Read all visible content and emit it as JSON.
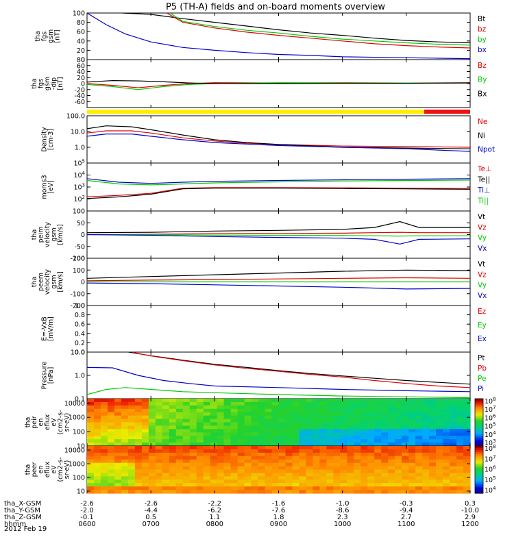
{
  "title": "P5 (TH-A) fields and on-board moments overview",
  "date": "2012 Feb 19",
  "ephemeris": {
    "labels": [
      "tha_X-GSM",
      "tha_Y-GSM",
      "tha_Z-GSM",
      "hhmm"
    ],
    "rows": [
      [
        "-2.6",
        "-2.6",
        "-2.2",
        "-1.6",
        "-1.0",
        "-0.3",
        "0.3"
      ],
      [
        "-2.0",
        "-4.4",
        "-6.2",
        "-7.6",
        "-8.6",
        "-9.4",
        "-10.0"
      ],
      [
        "-0.1",
        "0.5",
        "1.1",
        "1.8",
        "2.3",
        "2.7",
        "2.9"
      ],
      [
        "0600",
        "0700",
        "0800",
        "0900",
        "1000",
        "1100",
        "1200"
      ]
    ]
  },
  "chart_data": [
    {
      "type": "line",
      "id": "fgs_gsm",
      "ylabel": [
        "tha",
        "fgs",
        "gsm",
        "[nT]"
      ],
      "ylim": [
        0,
        100
      ],
      "log": false,
      "yticks": [
        0,
        20,
        40,
        60,
        80,
        100
      ],
      "yticklabels": [
        "0",
        "20",
        "40",
        "60",
        "80",
        "100"
      ],
      "xlim": [
        6,
        12
      ],
      "series": [
        {
          "name": "Bt",
          "color": "#000000",
          "x": [
            6.55,
            7.0,
            7.5,
            8.0,
            8.5,
            9.0,
            9.5,
            10.0,
            10.5,
            11.0,
            11.5,
            12.0
          ],
          "y": [
            100,
            97,
            88,
            80,
            72,
            64,
            57,
            52,
            46,
            41,
            38,
            36
          ]
        },
        {
          "name": "bz",
          "color": "#dd0000",
          "x": [
            7.25,
            7.5,
            8.0,
            8.5,
            9.0,
            9.5,
            10.0,
            10.5,
            11.0,
            11.5,
            12.0
          ],
          "y": [
            100,
            80,
            68,
            59,
            52,
            46,
            40,
            34,
            30,
            27,
            25
          ]
        },
        {
          "name": "by",
          "color": "#00cc00",
          "x": [
            7.3,
            7.5,
            8.0,
            8.5,
            9.0,
            9.5,
            10.0,
            10.5,
            11.0,
            11.5,
            12.0
          ],
          "y": [
            100,
            82,
            71,
            63,
            57,
            50,
            44,
            40,
            36,
            33,
            31
          ]
        },
        {
          "name": "bx",
          "color": "#0000cc",
          "x": [
            6.0,
            6.3,
            6.6,
            7.0,
            7.5,
            8.0,
            8.5,
            9.0,
            9.5,
            10.0,
            10.5,
            11.0,
            11.5,
            12.0
          ],
          "y": [
            100,
            75,
            55,
            38,
            26,
            20,
            15,
            11,
            9,
            6,
            5,
            4,
            3,
            2
          ]
        }
      ]
    },
    {
      "type": "line",
      "id": "fgs_dip",
      "ylabel": [
        "tha",
        "fgs",
        "gsm",
        "-dip",
        "[nT]"
      ],
      "ylim": [
        -80,
        80
      ],
      "log": false,
      "yticks": [
        -60,
        -40,
        -20,
        0,
        20,
        40,
        60,
        80
      ],
      "yticklabels": [
        "-60",
        "-40",
        "-20",
        "0",
        "20",
        "40",
        "60",
        "80"
      ],
      "xlim": [
        6,
        12
      ],
      "series": [
        {
          "name": "Bz",
          "color": "#dd0000",
          "x": [
            6.0,
            6.4,
            6.8,
            7.2,
            7.6,
            8.0,
            9.0,
            10.0,
            11.0,
            12.0
          ],
          "y": [
            0,
            -6,
            -14,
            -6,
            0,
            3,
            2,
            3,
            2,
            3
          ]
        },
        {
          "name": "By",
          "color": "#00cc00",
          "x": [
            6.0,
            6.4,
            6.8,
            7.2,
            7.6,
            8.0,
            9.0,
            10.0,
            11.0,
            12.0
          ],
          "y": [
            -3,
            -10,
            -20,
            -10,
            -3,
            0,
            3,
            2,
            2,
            2
          ]
        },
        {
          "name": "Bx",
          "color": "#000000",
          "x": [
            6.0,
            6.4,
            6.8,
            7.2,
            7.6,
            8.0,
            9.0,
            10.0,
            11.0,
            12.0
          ],
          "y": [
            5,
            10,
            9,
            6,
            2,
            0,
            0,
            1,
            1,
            2
          ]
        }
      ]
    },
    {
      "type": "density",
      "id": "density",
      "ylabel": [
        "Density",
        "[cm-3]"
      ],
      "ylim": [
        0.1,
        100
      ],
      "log": true,
      "yticks": [
        1,
        10,
        100
      ],
      "yticklabels": [
        "1.0",
        "10.0",
        "100.0"
      ],
      "xlim": [
        6,
        12
      ],
      "series": [
        {
          "name": "Ne",
          "color": "#dd0000",
          "x": [
            6.0,
            6.3,
            6.7,
            7.0,
            7.5,
            8.0,
            8.5,
            9.0,
            10.0,
            11.0,
            12.0
          ],
          "y": [
            8,
            11,
            11,
            8,
            4,
            2.5,
            1.8,
            1.5,
            1.2,
            1.1,
            1.0
          ]
        },
        {
          "name": "Ni",
          "color": "#000000",
          "x": [
            6.0,
            6.3,
            6.7,
            7.0,
            7.5,
            8.0,
            8.5,
            9.0,
            10.0,
            11.0,
            12.0
          ],
          "y": [
            15,
            23,
            20,
            13,
            6,
            3,
            2,
            1.5,
            1.0,
            0.9,
            0.8
          ]
        },
        {
          "name": "Npot",
          "color": "#0000cc",
          "x": [
            6.0,
            6.3,
            6.7,
            7.0,
            7.5,
            8.0,
            8.5,
            9.0,
            10.0,
            11.0,
            12.0
          ],
          "y": [
            5,
            7,
            7,
            5,
            3,
            2,
            1.6,
            1.3,
            1.0,
            0.8,
            0.55
          ]
        }
      ]
    },
    {
      "type": "line",
      "id": "temperature",
      "ylabel": [
        "moms3",
        "[eV]"
      ],
      "ylim": [
        10,
        100000
      ],
      "log": true,
      "yticks": [
        100,
        1000,
        10000,
        100000
      ],
      "yticklabels": [
        "10^2",
        "10^3",
        "10^4",
        "10^5"
      ],
      "xlim": [
        6,
        12
      ],
      "series": [
        {
          "name": "Te⊥",
          "color": "#dd0000",
          "x": [
            6.0,
            6.5,
            7.0,
            7.5,
            8.0,
            9.0,
            10.0,
            11.0,
            12.0
          ],
          "y": [
            150,
            200,
            300,
            800,
            900,
            900,
            850,
            800,
            750
          ]
        },
        {
          "name": "Te||",
          "color": "#000000",
          "x": [
            6.0,
            6.5,
            7.0,
            7.5,
            8.0,
            9.0,
            10.0,
            11.0,
            12.0
          ],
          "y": [
            110,
            150,
            250,
            700,
            800,
            800,
            750,
            700,
            650
          ]
        },
        {
          "name": "Ti⊥",
          "color": "#0000cc",
          "x": [
            6.0,
            6.5,
            7.0,
            7.5,
            8.0,
            9.0,
            10.0,
            11.0,
            12.0
          ],
          "y": [
            5000,
            2500,
            2000,
            2500,
            3000,
            3500,
            4000,
            4500,
            5000
          ]
        },
        {
          "name": "Ti||",
          "color": "#00cc00",
          "x": [
            6.0,
            6.5,
            7.0,
            7.5,
            8.0,
            9.0,
            10.0,
            11.0,
            12.0
          ],
          "y": [
            3500,
            1800,
            1500,
            1800,
            2200,
            2700,
            3200,
            3500,
            3800
          ]
        }
      ]
    },
    {
      "type": "line",
      "id": "peim_velocity",
      "ylabel": [
        "tha",
        "peim",
        "velocity",
        "gsm",
        "[km/s]"
      ],
      "ylim": [
        -100,
        100
      ],
      "log": false,
      "yticks": [
        -100,
        -50,
        0,
        50,
        100
      ],
      "yticklabels": [
        "-100",
        "-50",
        "0",
        "50",
        "100"
      ],
      "xlim": [
        6,
        12
      ],
      "series": [
        {
          "name": "Vt",
          "color": "#000000",
          "x": [
            6.0,
            7.0,
            8.0,
            9.0,
            10.0,
            10.5,
            10.9,
            11.2,
            12.0
          ],
          "y": [
            8,
            10,
            15,
            18,
            22,
            30,
            55,
            30,
            30
          ]
        },
        {
          "name": "Vz",
          "color": "#dd0000",
          "x": [
            6.0,
            7.0,
            8.0,
            9.0,
            10.0,
            10.5,
            10.9,
            11.2,
            12.0
          ],
          "y": [
            0,
            2,
            4,
            5,
            6,
            8,
            10,
            8,
            8
          ]
        },
        {
          "name": "Vy",
          "color": "#00cc00",
          "x": [
            6.0,
            7.0,
            8.0,
            9.0,
            10.0,
            10.5,
            10.9,
            11.2,
            12.0
          ],
          "y": [
            0,
            0,
            -2,
            -3,
            -4,
            -5,
            -6,
            -5,
            -5
          ]
        },
        {
          "name": "Vx",
          "color": "#0000cc",
          "x": [
            6.0,
            7.0,
            8.0,
            9.0,
            10.0,
            10.5,
            10.9,
            11.2,
            12.0
          ],
          "y": [
            0,
            -3,
            -8,
            -12,
            -15,
            -20,
            -40,
            -20,
            -18
          ]
        }
      ]
    },
    {
      "type": "line",
      "id": "peem_velocity",
      "ylabel": [
        "tha",
        "peem",
        "velocity",
        "gsm",
        "[km/s]"
      ],
      "ylim": [
        -200,
        200
      ],
      "log": false,
      "yticks": [
        -200,
        -100,
        0,
        100,
        200
      ],
      "yticklabels": [
        "-200",
        "-100",
        "0",
        "100",
        "200"
      ],
      "xlim": [
        6,
        12
      ],
      "series": [
        {
          "name": "Vt",
          "color": "#000000",
          "x": [
            6.0,
            7.0,
            8.0,
            9.0,
            10.0,
            11.0,
            12.0
          ],
          "y": [
            30,
            45,
            60,
            75,
            90,
            100,
            95
          ]
        },
        {
          "name": "Vz",
          "color": "#dd0000",
          "x": [
            6.0,
            7.0,
            8.0,
            9.0,
            10.0,
            11.0,
            12.0
          ],
          "y": [
            10,
            15,
            20,
            25,
            30,
            35,
            30
          ]
        },
        {
          "name": "Vy",
          "color": "#00cc00",
          "x": [
            6.0,
            7.0,
            8.0,
            9.0,
            10.0,
            11.0,
            12.0
          ],
          "y": [
            0,
            0,
            0,
            0,
            0,
            0,
            0
          ]
        },
        {
          "name": "Vx",
          "color": "#0000cc",
          "x": [
            6.0,
            7.0,
            8.0,
            9.0,
            10.0,
            11.0,
            12.0
          ],
          "y": [
            -10,
            -15,
            -25,
            -35,
            -45,
            -60,
            -55
          ]
        }
      ]
    },
    {
      "type": "line",
      "id": "efield",
      "ylabel": [
        "E=-VxB",
        "[mV/m]"
      ],
      "ylim": [
        0,
        1
      ],
      "log": false,
      "yticks": [
        0,
        0.2,
        0.4,
        0.6,
        0.8,
        1.0
      ],
      "yticklabels": [
        "0.0",
        "0.2",
        "0.4",
        "0.6",
        "0.8",
        "1.0"
      ],
      "xlim": [
        6,
        12
      ],
      "series": [
        {
          "name": "Ez",
          "color": "#dd0000",
          "x": [],
          "y": []
        },
        {
          "name": "Ey",
          "color": "#00cc00",
          "x": [],
          "y": []
        },
        {
          "name": "Ex",
          "color": "#0000cc",
          "x": [],
          "y": []
        }
      ]
    },
    {
      "type": "line",
      "id": "pressure",
      "ylabel": [
        "Pressure",
        "[nPa]"
      ],
      "ylim": [
        0.1,
        10
      ],
      "log": true,
      "yticks": [
        0.1,
        1,
        10
      ],
      "yticklabels": [
        "0.1",
        "1.0",
        "10.0"
      ],
      "xlim": [
        6,
        12
      ],
      "series": [
        {
          "name": "Pt",
          "color": "#000000",
          "x": [
            6.65,
            7.0,
            7.5,
            8.0,
            8.5,
            9.0,
            9.5,
            10.0,
            10.5,
            11.0,
            11.5,
            12.0
          ],
          "y": [
            10,
            7,
            4.5,
            3.0,
            2.2,
            1.6,
            1.2,
            0.95,
            0.75,
            0.6,
            0.5,
            0.42
          ]
        },
        {
          "name": "Pb",
          "color": "#dd0000",
          "x": [
            6.7,
            7.0,
            7.5,
            8.0,
            8.5,
            9.0,
            9.5,
            10.0,
            10.5,
            11.0,
            11.5,
            12.0
          ],
          "y": [
            10,
            6.8,
            4.3,
            2.8,
            2.0,
            1.5,
            1.1,
            0.85,
            0.6,
            0.45,
            0.35,
            0.3
          ]
        },
        {
          "name": "Pe",
          "color": "#00cc00",
          "x": [
            6.0,
            6.3,
            6.6,
            7.0,
            7.5,
            8.0,
            9.0,
            10.0,
            11.0,
            12.0
          ],
          "y": [
            0.15,
            0.25,
            0.3,
            0.25,
            0.2,
            0.18,
            0.15,
            0.13,
            0.12,
            0.11
          ]
        },
        {
          "name": "Pi",
          "color": "#0000cc",
          "x": [
            6.0,
            6.4,
            6.8,
            7.2,
            7.6,
            8.0,
            9.0,
            10.0,
            11.0,
            12.0
          ],
          "y": [
            2.2,
            2.1,
            1.0,
            0.6,
            0.45,
            0.35,
            0.3,
            0.25,
            0.22,
            0.2
          ]
        }
      ]
    },
    {
      "type": "heatmap",
      "id": "peir_eflux",
      "ylabel": [
        "tha",
        "peir",
        "en",
        "eflux",
        "eV",
        "(cm2-s-",
        "sr-eV)"
      ],
      "ylim": [
        10,
        20000
      ],
      "log": true,
      "yticks": [
        10,
        100,
        1000,
        10000
      ],
      "yticklabels": [
        "10",
        "100",
        "1000",
        "10000"
      ],
      "xlim": [
        6,
        12
      ],
      "colorbar": {
        "ticklabels": [
          "10^3",
          "10^4",
          "10^5",
          "10^6",
          "10^7",
          "10^8"
        ]
      }
    },
    {
      "type": "heatmap",
      "id": "peer_eflux",
      "ylabel": [
        "tha",
        "peer",
        "en",
        "eflux",
        "eV",
        "(cm2-s-",
        "sr-eV)"
      ],
      "ylim": [
        7,
        20000
      ],
      "log": true,
      "yticks": [
        10,
        100,
        1000,
        10000
      ],
      "yticklabels": [
        "10",
        "100",
        "1000",
        "10000"
      ],
      "xlim": [
        6,
        12
      ],
      "colorbar": {
        "ticklabels": [
          "10^4",
          "10^5",
          "10^6",
          "10^7",
          "10^8"
        ]
      }
    }
  ]
}
